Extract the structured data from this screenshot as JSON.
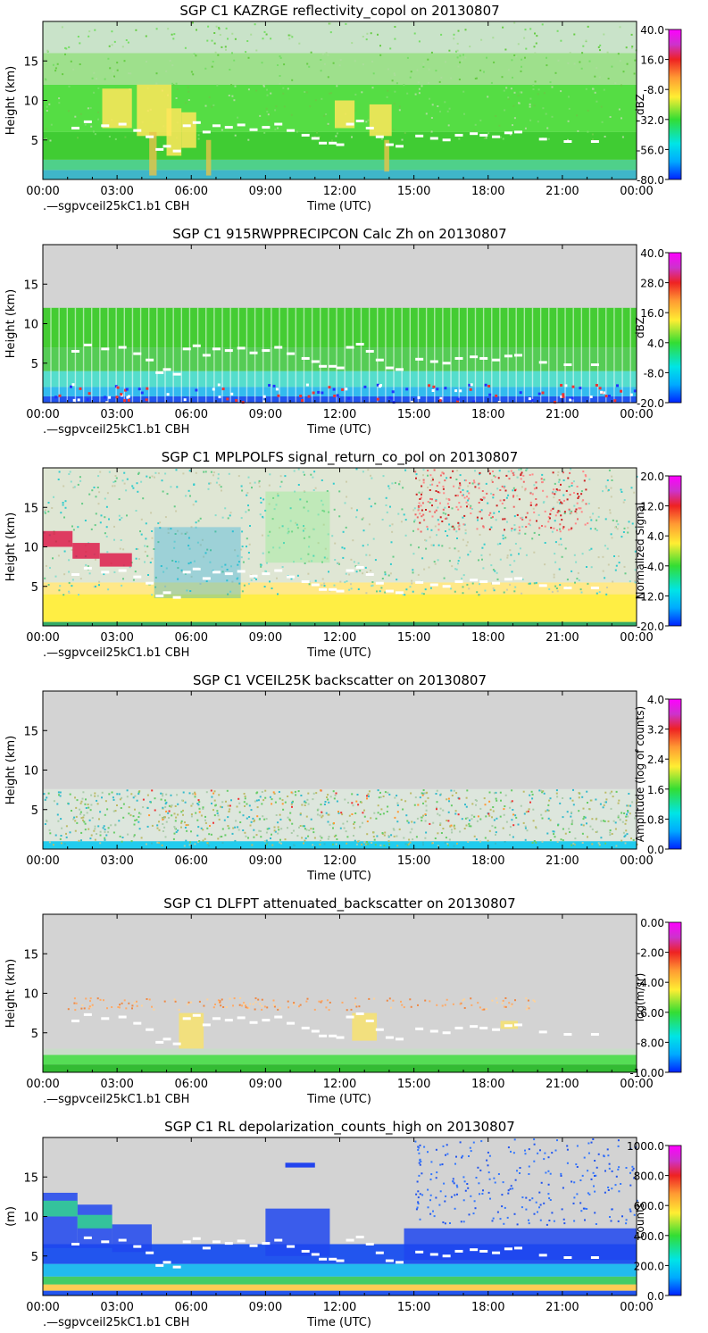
{
  "chart_data": [
    {
      "type": "heatmap",
      "title": "SGP C1 KAZRGE reflectivity_copol on 20130807",
      "xlabel": "Time (UTC)",
      "ylabel": "Height (km)",
      "colorbar_label": "dBZ",
      "colorbar_ticks": [
        "40.0",
        "16.0",
        "-8.0",
        "-32.0",
        "-56.0",
        "-80.0"
      ],
      "x_ticks": [
        "00:00",
        "03:00",
        "06:00",
        "09:00",
        "12:00",
        "15:00",
        "18:00",
        "21:00",
        "00:00"
      ],
      "y_ticks": [
        "5",
        "10",
        "15"
      ],
      "ylim": [
        0,
        20
      ],
      "legend_note": ".—sgpvceil25kC1.b1 CBH",
      "background": "#cfe6cf"
    },
    {
      "type": "heatmap",
      "title": "SGP C1 915RWPPRECIPCON Calc Zh on 20130807",
      "xlabel": "Time (UTC)",
      "ylabel": "Height (km)",
      "colorbar_label": "dBZ",
      "colorbar_ticks": [
        "40.0",
        "28.0",
        "16.0",
        "4.0",
        "-8.0",
        "-20.0"
      ],
      "x_ticks": [
        "00:00",
        "03:00",
        "06:00",
        "09:00",
        "12:00",
        "15:00",
        "18:00",
        "21:00",
        "00:00"
      ],
      "y_ticks": [
        "5",
        "10",
        "15"
      ],
      "ylim": [
        0,
        20
      ],
      "legend_note": ".—sgpvceil25kC1.b1 CBH",
      "background": "#d3d3d3"
    },
    {
      "type": "heatmap",
      "title": "SGP C1 MPLPOLFS signal_return_co_pol on 20130807",
      "xlabel": "Time (UTC)",
      "ylabel": "Height (km)",
      "colorbar_label": "Normalized Signal",
      "colorbar_ticks": [
        "20.0",
        "12.0",
        "4.0",
        "-4.0",
        "-12.0",
        "-20.0"
      ],
      "x_ticks": [
        "00:00",
        "03:00",
        "06:00",
        "09:00",
        "12:00",
        "15:00",
        "18:00",
        "21:00",
        "00:00"
      ],
      "y_ticks": [
        "5",
        "10",
        "15"
      ],
      "ylim": [
        0,
        20
      ],
      "legend_note": ".—sgpvceil25kC1.b1 CBH",
      "background": "#dfe6d4"
    },
    {
      "type": "heatmap",
      "title": "SGP C1 VCEIL25K backscatter on 20130807",
      "xlabel": "Time (UTC)",
      "ylabel": "Height (km)",
      "colorbar_label": "Amplitude (log of counts)",
      "colorbar_ticks": [
        "4.0",
        "3.2",
        "2.4",
        "1.6",
        "0.8",
        "0.0"
      ],
      "x_ticks": [
        "00:00",
        "03:00",
        "06:00",
        "09:00",
        "12:00",
        "15:00",
        "18:00",
        "21:00",
        "00:00"
      ],
      "y_ticks": [
        "5",
        "10",
        "15"
      ],
      "ylim": [
        0,
        20
      ],
      "legend_note": "",
      "background": "#d3d3d3"
    },
    {
      "type": "heatmap",
      "title": "SGP C1 DLFPT attenuated_backscatter on 20130807",
      "xlabel": "Time (UTC)",
      "ylabel": "Height (km)",
      "colorbar_label": "log(m/sr)",
      "colorbar_ticks": [
        "0.00",
        "-2.00",
        "-4.00",
        "-6.00",
        "-8.00",
        "-10.00"
      ],
      "x_ticks": [
        "00:00",
        "03:00",
        "06:00",
        "09:00",
        "12:00",
        "15:00",
        "18:00",
        "21:00",
        "00:00"
      ],
      "y_ticks": [
        "5",
        "10",
        "15"
      ],
      "ylim": [
        0,
        20
      ],
      "legend_note": ".—sgpvceil25kC1.b1 CBH",
      "background": "#d3d3d3"
    },
    {
      "type": "heatmap",
      "title": "SGP C1 RL depolarization_counts_high on 20130807",
      "xlabel": "Time (UTC)",
      "ylabel": "(m)",
      "colorbar_label": "counts",
      "colorbar_ticks": [
        "1000.0",
        "800.0",
        "600.0",
        "400.0",
        "200.0",
        "0.0"
      ],
      "x_ticks": [
        "00:00",
        "03:00",
        "06:00",
        "09:00",
        "12:00",
        "15:00",
        "18:00",
        "21:00",
        "00:00"
      ],
      "y_ticks": [
        "5",
        "10",
        "15"
      ],
      "ylim": [
        0,
        20
      ],
      "legend_note": ".—sgpvceil25kC1.b1 CBH",
      "background": "#d3d3d3"
    }
  ],
  "cbh": {
    "hours": [
      1.3,
      1.8,
      2.5,
      3.2,
      3.8,
      4.3,
      4.7,
      5.0,
      5.4,
      5.8,
      6.2,
      6.6,
      7.0,
      7.5,
      8.0,
      8.5,
      9.0,
      9.5,
      10.0,
      10.6,
      11.0,
      11.3,
      11.7,
      12.0,
      12.4,
      12.8,
      13.2,
      13.6,
      14.0,
      14.4,
      15.2,
      15.8,
      16.3,
      16.8,
      17.4,
      17.8,
      18.3,
      18.8,
      19.2,
      20.2,
      21.2,
      22.3
    ],
    "km": [
      6.5,
      7.3,
      6.8,
      7.0,
      6.2,
      5.4,
      3.8,
      4.2,
      3.6,
      6.8,
      7.2,
      6.0,
      6.8,
      6.6,
      6.9,
      6.3,
      6.6,
      7.0,
      6.2,
      5.6,
      5.2,
      4.6,
      4.6,
      4.4,
      7.0,
      7.4,
      6.5,
      5.4,
      4.4,
      4.2,
      5.5,
      5.2,
      5.0,
      5.6,
      5.8,
      5.6,
      5.4,
      5.9,
      6.0,
      5.1,
      4.8,
      4.8
    ]
  }
}
